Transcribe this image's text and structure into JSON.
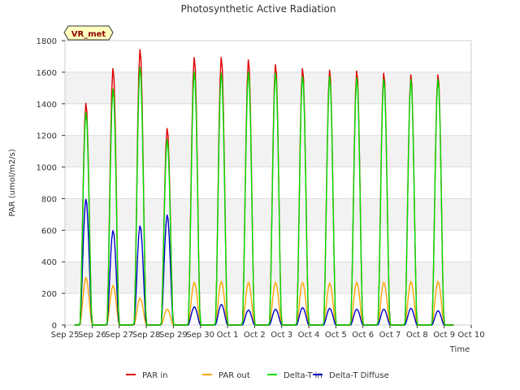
{
  "chart_data": {
    "type": "line",
    "title": "Photosynthetic Active Radiation",
    "xlabel": "Time",
    "ylabel": "PAR (umol/m2/s)",
    "badge": "VR_met",
    "ylim": [
      0,
      1800
    ],
    "yticks": [
      0,
      200,
      400,
      600,
      800,
      1000,
      1200,
      1400,
      1600,
      1800
    ],
    "xlim": [
      0,
      15
    ],
    "xticks": [
      {
        "x": 0,
        "label": "Sep 25"
      },
      {
        "x": 1,
        "label": "Sep 26"
      },
      {
        "x": 2,
        "label": "Sep 27"
      },
      {
        "x": 3,
        "label": "Sep 28"
      },
      {
        "x": 4,
        "label": "Sep 29"
      },
      {
        "x": 5,
        "label": "Sep 30"
      },
      {
        "x": 6,
        "label": "Oct 1"
      },
      {
        "x": 7,
        "label": "Oct 2"
      },
      {
        "x": 8,
        "label": "Oct 3"
      },
      {
        "x": 9,
        "label": "Oct 4"
      },
      {
        "x": 10,
        "label": "Oct 5"
      },
      {
        "x": 11,
        "label": "Oct 6"
      },
      {
        "x": 12,
        "label": "Oct 7"
      },
      {
        "x": 13,
        "label": "Oct 8"
      },
      {
        "x": 14,
        "label": "Oct 9"
      },
      {
        "x": 15,
        "label": "Oct 10"
      }
    ],
    "grid": "horizontal bands",
    "legend_position": "bottom",
    "series": [
      {
        "name": "PAR in",
        "color": "#e00000",
        "daily_peaks": [
          1410,
          1630,
          1750,
          1250,
          1700,
          1700,
          1685,
          1655,
          1630,
          1620,
          1615,
          1600,
          1590,
          1590
        ]
      },
      {
        "name": "PAR out",
        "color": "#ffa500",
        "daily_peaks": [
          300,
          250,
          170,
          100,
          270,
          275,
          270,
          270,
          270,
          265,
          270,
          270,
          275,
          275
        ]
      },
      {
        "name": "Delta-T in",
        "color": "#00e000",
        "daily_peaks": [
          1350,
          1500,
          1640,
          1180,
          1610,
          1600,
          1610,
          1600,
          1580,
          1580,
          1570,
          1560,
          1560,
          1560
        ]
      },
      {
        "name": "Delta-T Diffuse",
        "color": "#0000cc",
        "daily_peaks": [
          800,
          600,
          630,
          700,
          115,
          130,
          95,
          100,
          110,
          105,
          100,
          100,
          105,
          90
        ]
      }
    ]
  }
}
